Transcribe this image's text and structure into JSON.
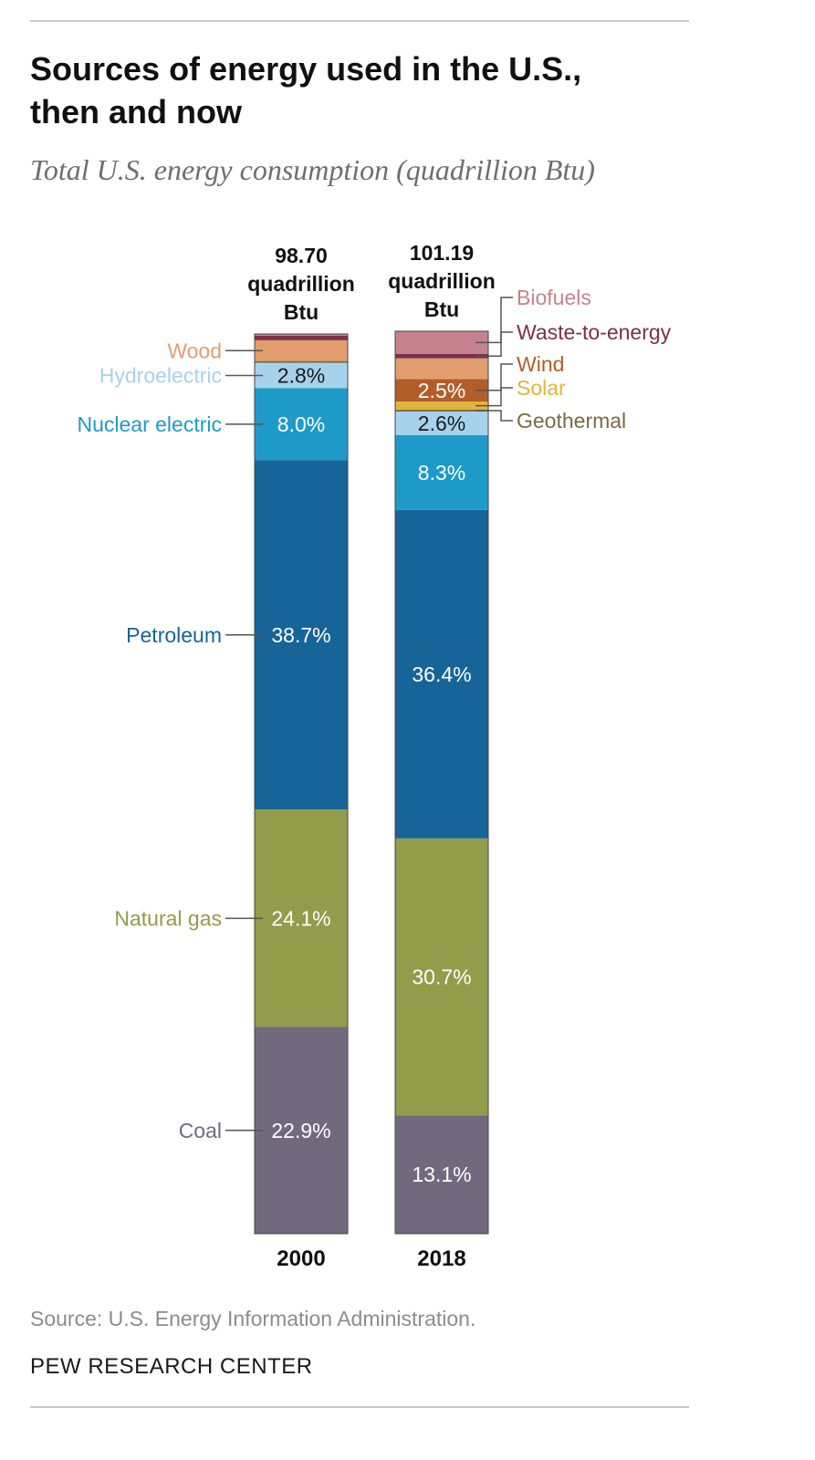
{
  "header": {
    "title_line1": "Sources of energy used in the U.S.,",
    "title_line2": "then and now",
    "subtitle": "Total U.S. energy consumption (quadrillion Btu)"
  },
  "footer": {
    "source": "Source: U.S. Energy Information Administration.",
    "brand": "PEW RESEARCH CENTER"
  },
  "colors": {
    "coal": "#73697f",
    "natural_gas": "#929c4b",
    "petroleum": "#176499",
    "nuclear": "#1e9ac9",
    "hydro": "#a7d2ec",
    "geothermal": "#7a6a3f",
    "solar": "#e3b43b",
    "wind": "#b25e2a",
    "wood": "#e29e6e",
    "waste": "#7d2f49",
    "biofuels": "#c5838f"
  },
  "chart_data": {
    "type": "bar",
    "stacked": true,
    "title": "Sources of energy used in the U.S., then and now",
    "subtitle": "Total U.S. energy consumption (quadrillion Btu)",
    "unit": "percent of total",
    "ylim": [
      0,
      100
    ],
    "bars": [
      {
        "category": "2000",
        "total_line1": "98.70",
        "total_line2": "quadrillion",
        "total_line3": "Btu",
        "segments": [
          {
            "key": "coal",
            "name": "Coal",
            "value": 22.9,
            "label": "22.9%"
          },
          {
            "key": "natural_gas",
            "name": "Natural gas",
            "value": 24.1,
            "label": "24.1%"
          },
          {
            "key": "petroleum",
            "name": "Petroleum",
            "value": 38.7,
            "label": "38.7%"
          },
          {
            "key": "nuclear",
            "name": "Nuclear electric",
            "value": 8.0,
            "label": "8.0%"
          },
          {
            "key": "hydro",
            "name": "Hydroelectric",
            "value": 2.8,
            "label": "2.8%"
          },
          {
            "key": "geothermal",
            "name": "Geothermal",
            "value": 0.2,
            "label": ""
          },
          {
            "key": "wood",
            "name": "Wood",
            "value": 2.3,
            "label": ""
          },
          {
            "key": "waste",
            "name": "Waste-to-energy",
            "value": 0.5,
            "label": ""
          },
          {
            "key": "biofuels",
            "name": "Biofuels",
            "value": 0.2,
            "label": ""
          }
        ]
      },
      {
        "category": "2018",
        "total_line1": "101.19",
        "total_line2": "quadrillion",
        "total_line3": "Btu",
        "segments": [
          {
            "key": "coal",
            "name": "Coal",
            "value": 13.1,
            "label": "13.1%"
          },
          {
            "key": "natural_gas",
            "name": "Natural gas",
            "value": 30.7,
            "label": "30.7%"
          },
          {
            "key": "petroleum",
            "name": "Petroleum",
            "value": 36.4,
            "label": "36.4%"
          },
          {
            "key": "nuclear",
            "name": "Nuclear electric",
            "value": 8.3,
            "label": "8.3%"
          },
          {
            "key": "hydro",
            "name": "Hydroelectric",
            "value": 2.6,
            "label": "2.6%"
          },
          {
            "key": "geothermal",
            "name": "Geothermal",
            "value": 0.2,
            "label": ""
          },
          {
            "key": "solar",
            "name": "Solar",
            "value": 0.9,
            "label": ""
          },
          {
            "key": "wind",
            "name": "Wind",
            "value": 2.5,
            "label": "2.5%"
          },
          {
            "key": "wood",
            "name": "Wood",
            "value": 2.3,
            "label": ""
          },
          {
            "key": "waste",
            "name": "Waste-to-energy",
            "value": 0.5,
            "label": ""
          },
          {
            "key": "biofuels",
            "name": "Biofuels",
            "value": 2.5,
            "label": ""
          }
        ]
      }
    ],
    "left_legend": [
      {
        "key": "wood",
        "label": "Wood"
      },
      {
        "key": "hydro",
        "label": "Hydroelectric"
      },
      {
        "key": "nuclear",
        "label": "Nuclear electric"
      },
      {
        "key": "petroleum",
        "label": "Petroleum"
      },
      {
        "key": "natural_gas",
        "label": "Natural gas"
      },
      {
        "key": "coal",
        "label": "Coal"
      }
    ],
    "right_legend": [
      {
        "key": "biofuels",
        "label": "Biofuels"
      },
      {
        "key": "waste",
        "label": "Waste-to-energy"
      },
      {
        "key": "wind",
        "label": "Wind"
      },
      {
        "key": "solar",
        "label": "Solar"
      },
      {
        "key": "geothermal",
        "label": "Geothermal"
      }
    ]
  }
}
